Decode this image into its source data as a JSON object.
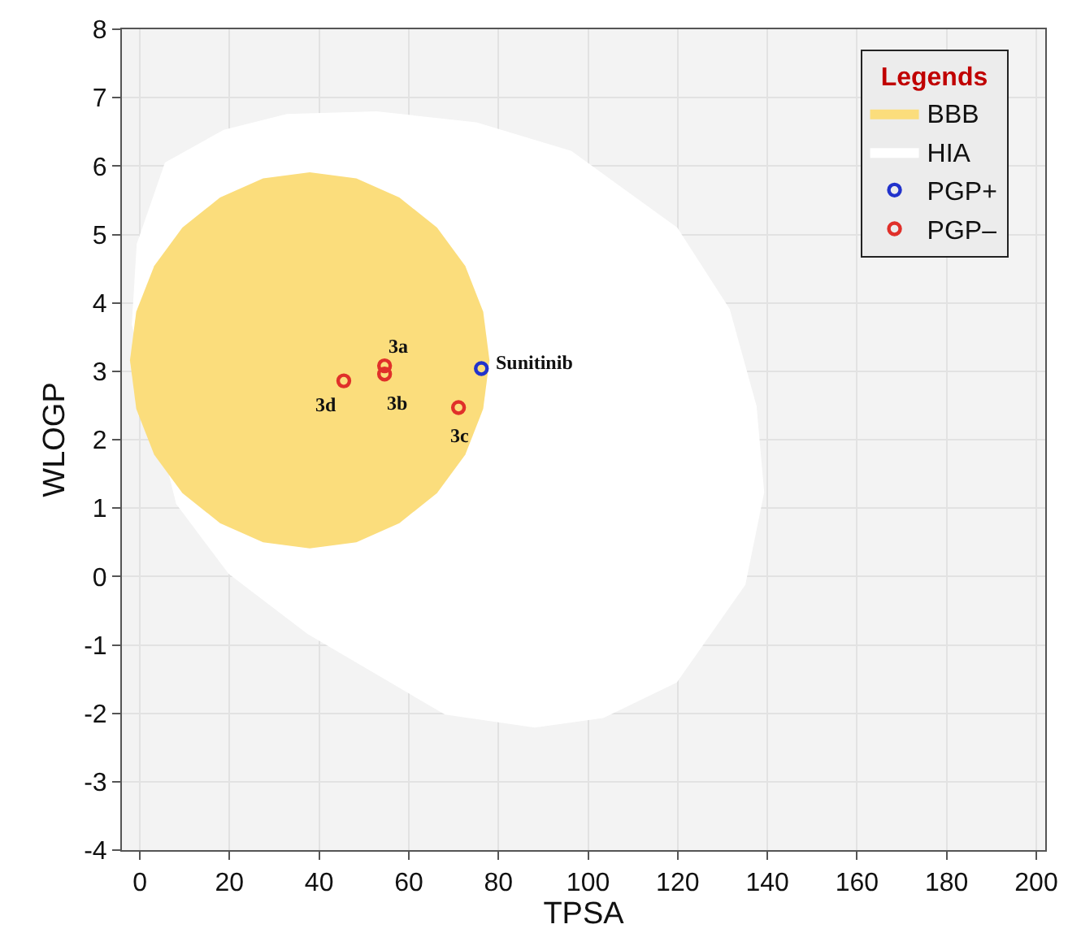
{
  "chart_data": {
    "type": "scatter",
    "xlabel": "TPSA",
    "ylabel": "WLOGP",
    "legend_title": "Legends",
    "legend": "top right",
    "grid": true,
    "xlim": [
      -4,
      202
    ],
    "xticks": [
      0,
      20,
      40,
      60,
      80,
      100,
      120,
      140,
      160,
      180,
      200
    ],
    "ylim": [
      -4,
      8
    ],
    "yticks": [
      -4,
      -3,
      -2,
      -1,
      0,
      1,
      2,
      3,
      4,
      5,
      6,
      7,
      8
    ],
    "series": [
      {
        "name": "HIA",
        "type": "area",
        "color": "#ffffff",
        "x": [
          52.8,
          75.1,
          96.3,
          119.9,
          131.6,
          137.6,
          139.3,
          135.1,
          119.8,
          103.4,
          88.1,
          68.1,
          37.4,
          19.8,
          8.1,
          -1.8,
          -0.7,
          5.6,
          18.7,
          32.8,
          52.8
        ],
        "values": [
          6.8,
          6.64,
          6.22,
          5.1,
          3.91,
          2.49,
          1.23,
          -0.12,
          -1.55,
          -2.07,
          -2.21,
          -2.02,
          -0.84,
          0.04,
          1.06,
          3.68,
          4.86,
          6.05,
          6.53,
          6.76,
          6.8
        ]
      },
      {
        "name": "BBB",
        "type": "area",
        "color": "#fbdd7c",
        "x": [
          78.0,
          76.6,
          72.6,
          66.3,
          57.9,
          48.3,
          37.9,
          27.5,
          17.9,
          9.5,
          3.2,
          -0.8,
          -2.2,
          -0.8,
          3.2,
          9.5,
          17.9,
          27.5,
          37.9,
          48.3,
          57.9,
          66.3,
          72.6,
          76.6,
          78.0
        ],
        "values": [
          3.16,
          3.87,
          4.54,
          5.1,
          5.54,
          5.82,
          5.91,
          5.82,
          5.54,
          5.1,
          4.54,
          3.87,
          3.16,
          2.45,
          1.78,
          1.22,
          0.78,
          0.5,
          0.41,
          0.5,
          0.78,
          1.22,
          1.78,
          2.45,
          3.16
        ]
      },
      {
        "name": "PGP+",
        "marker": "circle",
        "color": "#2233cc",
        "x": [
          76.2
        ],
        "values": [
          3.04
        ]
      },
      {
        "name": "PGP–",
        "marker": "circle",
        "color": "#e0302a",
        "x": [
          54.6,
          54.6,
          71.1,
          45.5
        ],
        "values": [
          3.08,
          2.96,
          2.47,
          2.86
        ]
      }
    ],
    "annotations": [
      {
        "text": "3a",
        "x": 54.6,
        "y": 3.08
      },
      {
        "text": "3b",
        "x": 54.6,
        "y": 2.96
      },
      {
        "text": "3c",
        "x": 71.1,
        "y": 2.47
      },
      {
        "text": "3d",
        "x": 45.5,
        "y": 2.86
      },
      {
        "text": "Sunitinib",
        "x": 76.2,
        "y": 3.04
      }
    ]
  }
}
